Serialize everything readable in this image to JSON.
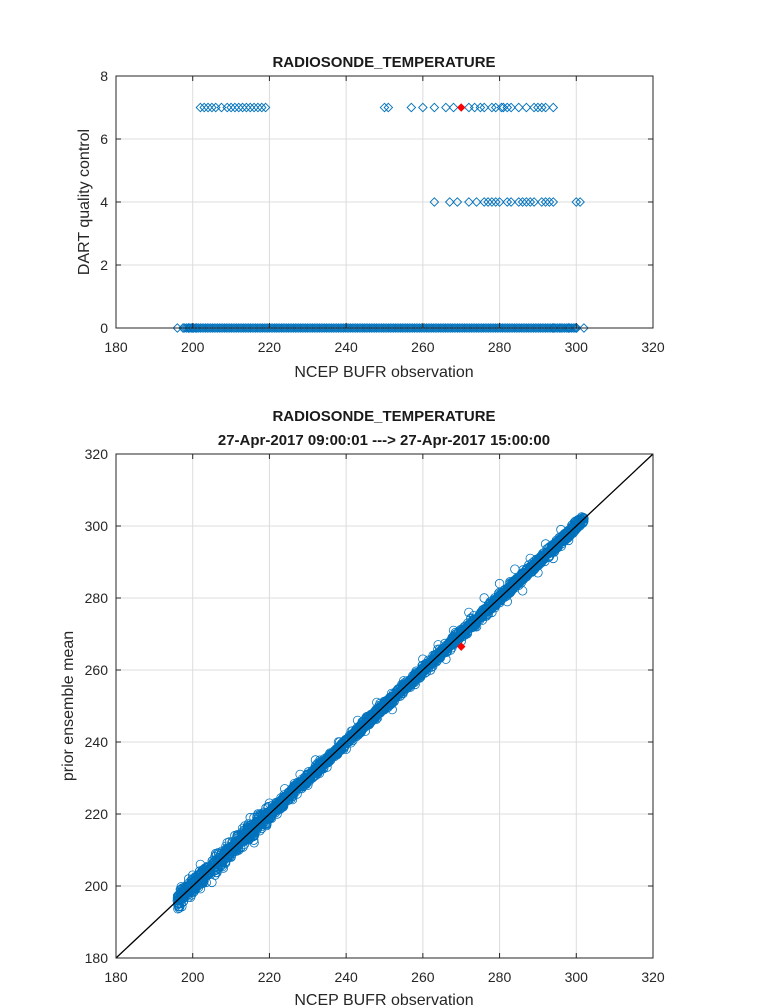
{
  "colors": {
    "marker": "#0072BD",
    "highlight": "#FF0000",
    "identity_line": "#000000",
    "grid": "#dcdcdc"
  },
  "chart_data": [
    {
      "type": "scatter",
      "title": "RADIOSONDE_TEMPERATURE",
      "subtitle": "",
      "xlabel": "NCEP BUFR observation",
      "ylabel": "DART quality control",
      "xlim": [
        180,
        320
      ],
      "ylim": [
        0,
        8
      ],
      "xticks": [
        180,
        200,
        220,
        240,
        260,
        280,
        300,
        320
      ],
      "yticks": [
        0,
        2,
        4,
        6,
        8
      ],
      "xtick_labels": [
        "180",
        "200",
        "220",
        "240",
        "260",
        "280",
        "300",
        "320"
      ],
      "ytick_labels": [
        "0",
        "2",
        "4",
        "6",
        "8"
      ],
      "grid": true,
      "marker": "open-diamond",
      "series": [
        {
          "marker": "open-diamond",
          "color": "#0072BD",
          "points": [
            [
              196,
              0
            ],
            [
              197.5,
              0
            ],
            [
              199,
              0
            ],
            [
              200,
              0
            ],
            [
              201,
              0
            ],
            [
              302,
              0
            ],
            [
              300,
              0
            ],
            [
              298,
              0
            ],
            [
              296,
              0
            ],
            [
              294,
              0
            ],
            [
              202,
              7
            ],
            [
              203,
              7
            ],
            [
              204,
              7
            ],
            [
              205,
              7
            ],
            [
              206,
              7
            ],
            [
              207.5,
              7
            ],
            [
              209,
              7
            ],
            [
              210,
              7
            ],
            [
              211,
              7
            ],
            [
              212,
              7
            ],
            [
              213,
              7
            ],
            [
              214,
              7
            ],
            [
              215,
              7
            ],
            [
              216,
              7
            ],
            [
              217,
              7
            ],
            [
              218,
              7
            ],
            [
              219,
              7
            ],
            [
              250,
              7
            ],
            [
              251,
              7
            ],
            [
              257,
              7
            ],
            [
              260,
              7
            ],
            [
              263,
              7
            ],
            [
              266,
              7
            ],
            [
              268,
              7
            ],
            [
              272,
              7
            ],
            [
              273.5,
              7
            ],
            [
              275,
              7
            ],
            [
              276,
              7
            ],
            [
              278,
              7
            ],
            [
              279,
              7
            ],
            [
              280.5,
              7
            ],
            [
              281,
              7
            ],
            [
              282,
              7
            ],
            [
              283,
              7
            ],
            [
              285,
              7
            ],
            [
              287,
              7
            ],
            [
              289,
              7
            ],
            [
              290,
              7
            ],
            [
              291,
              7
            ],
            [
              292,
              7
            ],
            [
              294,
              7
            ],
            [
              263,
              4
            ],
            [
              267,
              4
            ],
            [
              269,
              4
            ],
            [
              272,
              4
            ],
            [
              274,
              4
            ],
            [
              276,
              4
            ],
            [
              277,
              4
            ],
            [
              278,
              4
            ],
            [
              279,
              4
            ],
            [
              280,
              4
            ],
            [
              282,
              4
            ],
            [
              283,
              4
            ],
            [
              285,
              4
            ],
            [
              286,
              4
            ],
            [
              287,
              4
            ],
            [
              288,
              4
            ],
            [
              289,
              4
            ],
            [
              291,
              4
            ],
            [
              292,
              4
            ],
            [
              293,
              4
            ],
            [
              294,
              4
            ],
            [
              300,
              4
            ],
            [
              301,
              4
            ]
          ],
          "dense_band": {
            "y": 0,
            "x_from": 196,
            "x_to": 302
          }
        },
        {
          "marker": "filled-diamond",
          "color": "#FF0000",
          "points": [
            [
              270,
              7
            ]
          ]
        }
      ]
    },
    {
      "type": "scatter",
      "title": "RADIOSONDE_TEMPERATURE",
      "subtitle": "27-Apr-2017 09:00:01 ---> 27-Apr-2017 15:00:00",
      "xlabel": "NCEP BUFR observation",
      "ylabel": "prior ensemble mean",
      "xlim": [
        180,
        320
      ],
      "ylim": [
        180,
        320
      ],
      "xticks": [
        180,
        200,
        220,
        240,
        260,
        280,
        300,
        320
      ],
      "yticks": [
        180,
        200,
        220,
        240,
        260,
        280,
        300,
        320
      ],
      "xtick_labels": [
        "180",
        "200",
        "220",
        "240",
        "260",
        "280",
        "300",
        "320"
      ],
      "ytick_labels": [
        "180",
        "200",
        "220",
        "240",
        "260",
        "280",
        "300",
        "320"
      ],
      "grid": true,
      "identity_line": [
        [
          180,
          180
        ],
        [
          320,
          320
        ]
      ],
      "series": [
        {
          "marker": "open-circle",
          "color": "#0072BD",
          "band": {
            "x_from": 196,
            "x_to": 302,
            "spread": 4
          },
          "points": [
            [
              196,
              196
            ],
            [
              197,
              199
            ],
            [
              198,
              197
            ],
            [
              200,
              203
            ],
            [
              202,
              206
            ],
            [
              203,
              204
            ],
            [
              205,
              201
            ],
            [
              206,
              209
            ],
            [
              208,
              205
            ],
            [
              209,
              212
            ],
            [
              210,
              208
            ],
            [
              211,
              214
            ],
            [
              212,
              210
            ],
            [
              213,
              216
            ],
            [
              214,
              213
            ],
            [
              215,
              219
            ],
            [
              216,
              212
            ],
            [
              217,
              220
            ],
            [
              218,
              216
            ],
            [
              220,
              223
            ],
            [
              222,
              220
            ],
            [
              224,
              227
            ],
            [
              226,
              224
            ],
            [
              228,
              231
            ],
            [
              230,
              228
            ],
            [
              232,
              235
            ],
            [
              235,
              233
            ],
            [
              238,
              240
            ],
            [
              240,
              238
            ],
            [
              243,
              246
            ],
            [
              245,
              243
            ],
            [
              248,
              251
            ],
            [
              250,
              250
            ],
            [
              252,
              249
            ],
            [
              255,
              257
            ],
            [
              258,
              256
            ],
            [
              260,
              263
            ],
            [
              262,
              260
            ],
            [
              264,
              267
            ],
            [
              266,
              263
            ],
            [
              268,
              271
            ],
            [
              270,
              268
            ],
            [
              272,
              276
            ],
            [
              274,
              272
            ],
            [
              276,
              280
            ],
            [
              278,
              276
            ],
            [
              280,
              284
            ],
            [
              282,
              279
            ],
            [
              284,
              288
            ],
            [
              286,
              282
            ],
            [
              288,
              291
            ],
            [
              290,
              287
            ],
            [
              292,
              295
            ],
            [
              294,
              291
            ],
            [
              296,
              299
            ],
            [
              298,
              296
            ],
            [
              300,
              301
            ],
            [
              302,
              302
            ]
          ]
        },
        {
          "marker": "filled-diamond",
          "color": "#FF0000",
          "points": [
            [
              270,
              266.5
            ]
          ]
        }
      ]
    }
  ]
}
